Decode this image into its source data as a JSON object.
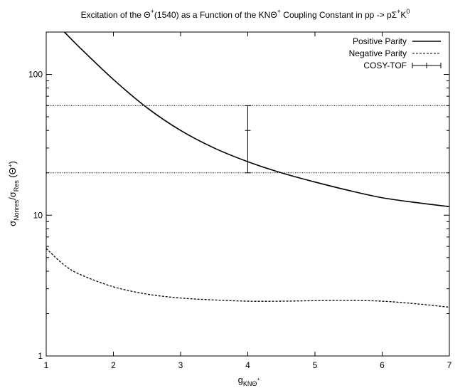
{
  "chart_data": {
    "type": "line",
    "title": "Excitation of the Θ⁺(1540) as a Function of the KNΘ⁺ Coupling Constant in pp -> pΣ⁺K⁰",
    "xlabel": "g_KNΘ⁺",
    "ylabel": "σ_Nonres/σ_Res (Θ⁺)",
    "xlim": [
      1,
      7
    ],
    "ylim": [
      1,
      200
    ],
    "y_scale": "log",
    "x_ticks": [
      "1",
      "2",
      "3",
      "4",
      "5",
      "6",
      "7"
    ],
    "y_ticks": [
      {
        "value": 1,
        "label": "1"
      },
      {
        "value": 10,
        "label": "10"
      },
      {
        "value": 100,
        "label": "100"
      }
    ],
    "legend_position": "top-right",
    "series": [
      {
        "name": "Positive Parity",
        "style": "solid",
        "color": "#000000",
        "x": [
          1.27,
          1.5,
          2.0,
          2.5,
          3.0,
          3.5,
          4.0,
          4.5,
          5.0,
          5.5,
          6.0,
          6.5,
          7.0
        ],
        "y": [
          200,
          155,
          92,
          58,
          40,
          30,
          24,
          20,
          17.2,
          15.0,
          13.3,
          12.3,
          11.5
        ]
      },
      {
        "name": "Negative Parity",
        "style": "dashed",
        "color": "#000000",
        "x": [
          1.0,
          1.25,
          1.5,
          2.0,
          2.5,
          3.0,
          3.5,
          4.0,
          4.5,
          5.0,
          5.5,
          6.0,
          6.5,
          7.0
        ],
        "y": [
          5.8,
          4.5,
          3.8,
          3.1,
          2.75,
          2.58,
          2.5,
          2.45,
          2.45,
          2.47,
          2.48,
          2.45,
          2.35,
          2.22
        ]
      }
    ],
    "measurement": {
      "name": "COSY-TOF",
      "x": 4.0,
      "y": 40,
      "y_low": 20,
      "y_high": 60
    },
    "reference_lines": [
      {
        "y": 60,
        "style": "dotted"
      },
      {
        "y": 20,
        "style": "dotted"
      }
    ]
  }
}
